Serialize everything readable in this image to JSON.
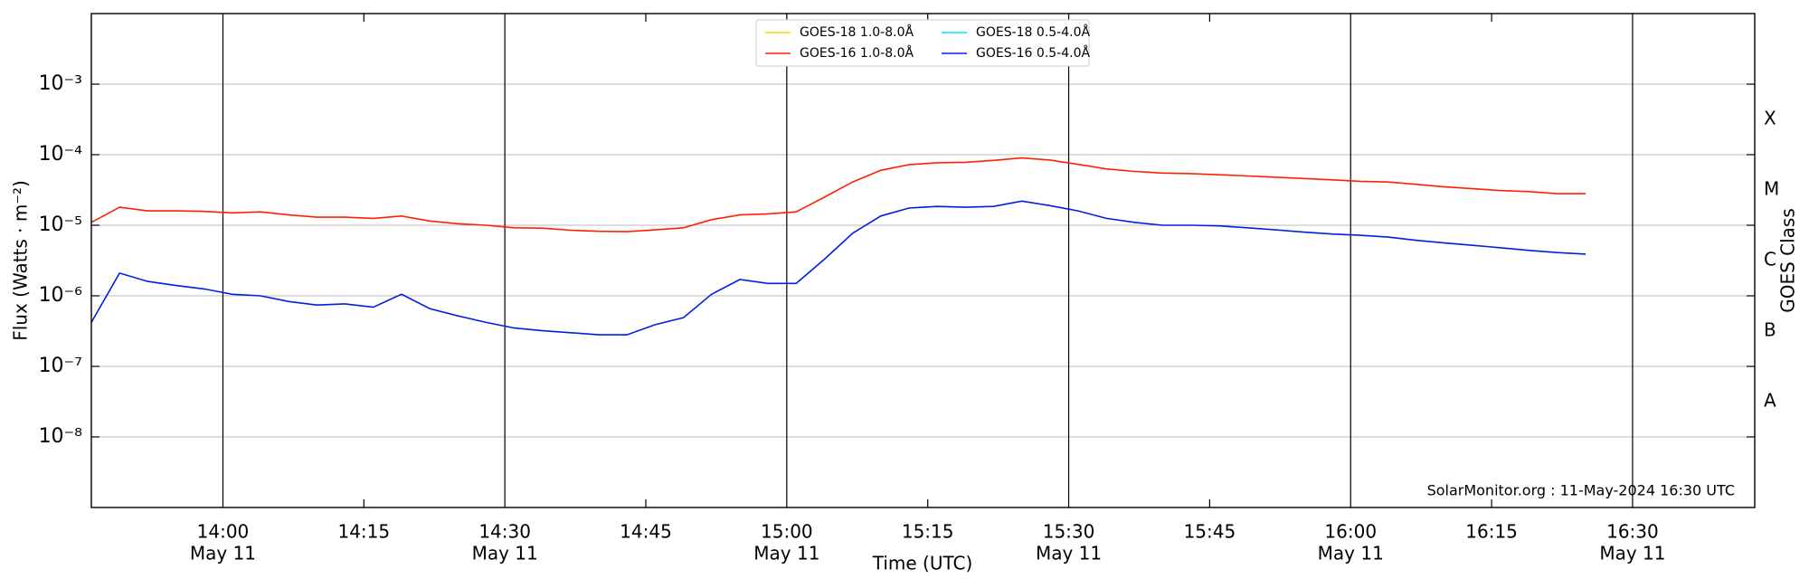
{
  "chart_data": {
    "type": "line",
    "ylabel": "Flux (Watts · m⁻²)",
    "xlabel": "Time (UTC)",
    "y2label": "GOES Class",
    "annotation": "SolarMonitor.org : 11-May-2024 16:30 UTC",
    "date": "May 11",
    "log_y": true,
    "grid": true,
    "legend": "upper center",
    "xlim": [
      "13:46",
      "16:43"
    ],
    "major_xticks": [
      "14:00",
      "14:30",
      "15:00",
      "15:30",
      "16:00",
      "16:30"
    ],
    "minor_xticks": [
      "14:15",
      "14:45",
      "15:15",
      "15:45",
      "16:15"
    ],
    "ylim": [
      1e-09,
      0.01
    ],
    "yticks": [
      {
        "value": 1e-08,
        "label": "10⁻⁸"
      },
      {
        "value": 1e-07,
        "label": "10⁻⁷"
      },
      {
        "value": 1e-06,
        "label": "10⁻⁶"
      },
      {
        "value": 1e-05,
        "label": "10⁻⁵"
      },
      {
        "value": 0.0001,
        "label": "10⁻⁴"
      },
      {
        "value": 0.001,
        "label": "10⁻³"
      }
    ],
    "y2lim": [
      1e-09,
      0.01
    ],
    "y2ticks": [
      {
        "value": 3.162e-08,
        "label": "A"
      },
      {
        "value": 3.162e-07,
        "label": "B"
      },
      {
        "value": 3.162e-06,
        "label": "C"
      },
      {
        "value": 3.162e-05,
        "label": "M"
      },
      {
        "value": 0.0003162,
        "label": "X"
      }
    ],
    "x": [
      "13:46",
      "13:49",
      "13:52",
      "13:55",
      "13:58",
      "14:01",
      "14:04",
      "14:07",
      "14:10",
      "14:13",
      "14:16",
      "14:19",
      "14:22",
      "14:25",
      "14:28",
      "14:31",
      "14:34",
      "14:37",
      "14:40",
      "14:43",
      "14:46",
      "14:49",
      "14:52",
      "14:55",
      "14:58",
      "15:01",
      "15:04",
      "15:07",
      "15:10",
      "15:13",
      "15:16",
      "15:19",
      "15:22",
      "15:25",
      "15:28",
      "15:31",
      "15:34",
      "15:37",
      "15:40",
      "15:43",
      "15:46",
      "15:49",
      "15:52",
      "15:55",
      "15:58",
      "16:01",
      "16:04",
      "16:07",
      "16:10",
      "16:13",
      "16:16",
      "16:19",
      "16:22",
      "16:25"
    ],
    "series": [
      {
        "name": "GOES-18 1.0-8.0Å",
        "color": "#ffd700",
        "values": [
          null,
          null,
          null,
          null,
          null,
          null,
          null,
          null,
          null,
          null,
          null,
          null,
          null,
          null,
          null,
          null,
          null,
          null,
          null,
          null,
          null,
          null,
          null,
          null,
          null,
          null,
          null,
          null,
          null,
          null,
          null,
          null,
          null,
          null,
          null,
          null,
          null,
          null,
          null,
          null,
          null,
          null,
          null,
          null,
          null,
          null,
          null,
          null,
          null,
          null,
          null,
          null,
          null,
          null
        ]
      },
      {
        "name": "GOES-16 1.0-8.0Å",
        "color": "#ff2000",
        "values": [
          1.1e-05,
          1.8e-05,
          1.6e-05,
          1.6e-05,
          1.57e-05,
          1.5e-05,
          1.55e-05,
          1.4e-05,
          1.3e-05,
          1.3e-05,
          1.25e-05,
          1.35e-05,
          1.15e-05,
          1.05e-05,
          1e-05,
          9.2e-06,
          9.1e-06,
          8.5e-06,
          8.2e-06,
          8.1e-06,
          8.6e-06,
          9.2e-06,
          1.2e-05,
          1.4e-05,
          1.45e-05,
          1.55e-05,
          2.5e-05,
          4.1e-05,
          6e-05,
          7.2e-05,
          7.7e-05,
          7.8e-05,
          8.3e-05,
          9e-05,
          8.4e-05,
          7.3e-05,
          6.3e-05,
          5.8e-05,
          5.5e-05,
          5.4e-05,
          5.2e-05,
          5e-05,
          4.8e-05,
          4.6e-05,
          4.4e-05,
          4.2e-05,
          4.1e-05,
          3.8e-05,
          3.5e-05,
          3.3e-05,
          3.1e-05,
          3e-05,
          2.8e-05,
          2.8e-05
        ]
      },
      {
        "name": "GOES-18 0.5-4.0Å",
        "color": "#00e5ff",
        "values": [
          null,
          null,
          null,
          null,
          null,
          null,
          null,
          null,
          null,
          null,
          null,
          null,
          null,
          null,
          null,
          null,
          null,
          null,
          null,
          null,
          null,
          null,
          null,
          null,
          null,
          null,
          null,
          null,
          null,
          null,
          null,
          null,
          null,
          null,
          null,
          null,
          null,
          null,
          null,
          null,
          null,
          null,
          null,
          null,
          null,
          null,
          null,
          null,
          null,
          null,
          null,
          null,
          null,
          null
        ]
      },
      {
        "name": "GOES-16 0.5-4.0Å",
        "color": "#0020e0",
        "values": [
          4.2e-07,
          2.1e-06,
          1.6e-06,
          1.4e-06,
          1.25e-06,
          1.05e-06,
          1e-06,
          8.3e-07,
          7.4e-07,
          7.7e-07,
          6.9e-07,
          1.05e-06,
          6.6e-07,
          5.2e-07,
          4.2e-07,
          3.5e-07,
          3.2e-07,
          3e-07,
          2.8e-07,
          2.8e-07,
          3.9e-07,
          4.9e-07,
          1.05e-06,
          1.7e-06,
          1.5e-06,
          1.5e-06,
          3.3e-06,
          7.7e-06,
          1.35e-05,
          1.75e-05,
          1.85e-05,
          1.8e-05,
          1.85e-05,
          2.2e-05,
          1.9e-05,
          1.6e-05,
          1.25e-05,
          1.1e-05,
          1e-05,
          1e-05,
          9.8e-06,
          9.2e-06,
          8.6e-06,
          8e-06,
          7.5e-06,
          7.2e-06,
          6.8e-06,
          6.1e-06,
          5.6e-06,
          5.2e-06,
          4.8e-06,
          4.4e-06,
          4.1e-06,
          3.9e-06
        ]
      }
    ]
  }
}
